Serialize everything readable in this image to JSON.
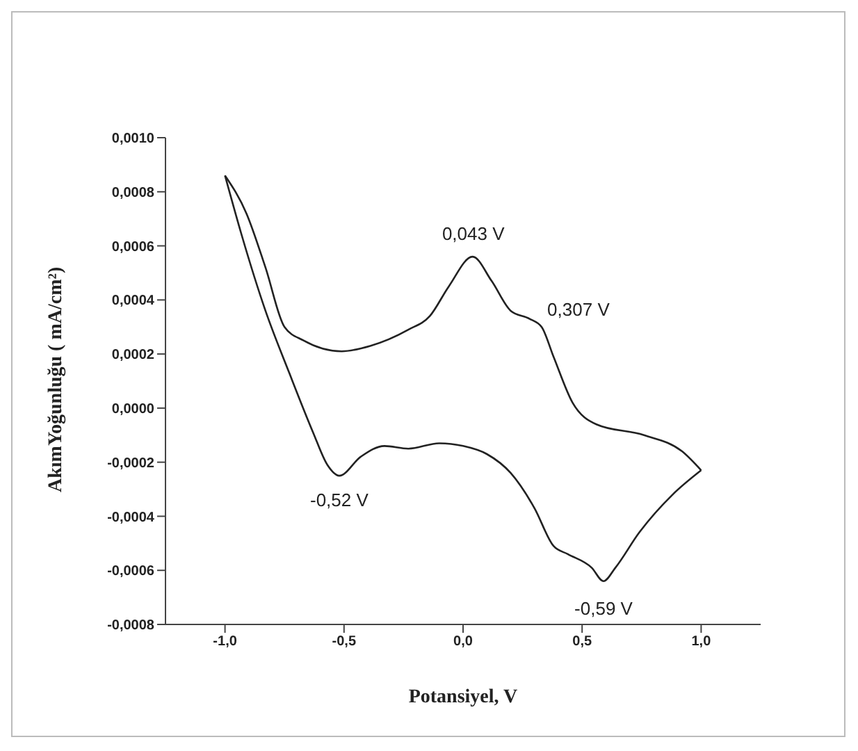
{
  "chart_data": {
    "type": "line",
    "xlabel": "Potansiyel, V",
    "ylabel": "AkımYoğunluğu ( mA/cm²)",
    "xlim": [
      -1.25,
      1.25
    ],
    "xticks": [
      {
        "value": -1,
        "label": "-1,0"
      },
      {
        "value": -0.5,
        "label": "-0,5"
      },
      {
        "value": 0,
        "label": "0,0"
      },
      {
        "value": 0.5,
        "label": "0,5"
      },
      {
        "value": 1,
        "label": "1,0"
      }
    ],
    "ylim": [
      -0.0008,
      0.001
    ],
    "yticks": [
      {
        "value": -0.0008,
        "label": "-0,0008"
      },
      {
        "value": -0.0006,
        "label": "-0,0006"
      },
      {
        "value": -0.0004,
        "label": "-0,0004"
      },
      {
        "value": -0.0002,
        "label": "-0,0002"
      },
      {
        "value": 0,
        "label": "0,0000"
      },
      {
        "value": 0.0002,
        "label": "0,0002"
      },
      {
        "value": 0.0004,
        "label": "0,0004"
      },
      {
        "value": 0.0006,
        "label": "0,0006"
      },
      {
        "value": 0.0008,
        "label": "0,0008"
      },
      {
        "value": 0.001,
        "label": "0,0010"
      }
    ],
    "grid": false,
    "legend": false,
    "series": [
      {
        "color": "#222222",
        "x": [
          -1.0,
          -0.93,
          -0.83,
          -0.73,
          -0.63,
          -0.57,
          -0.52,
          -0.43,
          -0.33,
          -0.23,
          -0.1,
          0.0,
          0.1,
          0.2,
          0.3,
          0.38,
          0.44,
          0.54,
          0.59,
          0.64,
          0.74,
          0.88,
          1.0
        ],
        "values": [
          0.00086,
          0.00064,
          0.00036,
          0.00013,
          -9e-05,
          -0.00021,
          -0.00025,
          -0.00018,
          -0.00014,
          -0.00015,
          -0.00013,
          -0.00014,
          -0.00017,
          -0.00024,
          -0.00037,
          -0.00051,
          -0.00054,
          -0.00059,
          -0.00064,
          -0.00059,
          -0.00046,
          -0.00032,
          -0.00023
        ]
      },
      {
        "color": "#222222",
        "x": [
          -1.0,
          -0.91,
          -0.83,
          -0.75,
          -0.67,
          -0.51,
          -0.39,
          -0.23,
          -0.14,
          -0.06,
          0.04,
          0.12,
          0.2,
          0.28,
          0.33,
          0.38,
          0.46,
          0.56,
          0.76,
          0.92,
          1.0
        ],
        "values": [
          0.00086,
          0.00072,
          0.00052,
          0.0003,
          0.00025,
          0.00021,
          0.00023,
          0.00029,
          0.00034,
          0.00045,
          0.00056,
          0.00047,
          0.00036,
          0.00033,
          0.0003,
          0.00019,
          2e-05,
          -6e-05,
          -0.0001,
          -0.00016,
          -0.00023
        ]
      }
    ],
    "annotations": [
      {
        "text": "0,043 V",
        "x": 0.043,
        "y": 0.00056
      },
      {
        "text": "0,307 V",
        "x": 0.307,
        "y": 0.00032
      },
      {
        "text": "-0,52 V",
        "x": -0.52,
        "y": -0.00025
      },
      {
        "text": "-0,59 V",
        "x": 0.59,
        "y": -0.00064
      }
    ]
  }
}
